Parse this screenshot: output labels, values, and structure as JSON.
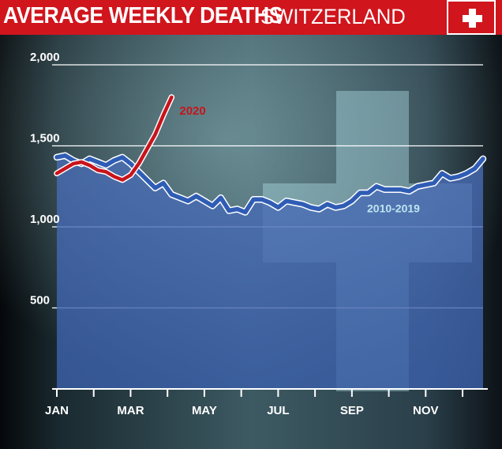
{
  "header": {
    "title": "AVERAGE WEEKLY DEATHS",
    "subtitle": "SWITZERLAND",
    "flag_icon": "swiss-flag-icon"
  },
  "colors": {
    "banner": "#d0151d",
    "series_2020": "#c8141c",
    "series_baseline": "#2f5db5",
    "baseline_fill": "#3a5fa8",
    "background": "#10171c"
  },
  "chart_data": {
    "type": "line",
    "title": "AVERAGE WEEKLY DEATHS",
    "subtitle": "SWITZERLAND",
    "ylim": [
      0,
      2000
    ],
    "yticks": [
      500,
      1000,
      1500,
      2000
    ],
    "ytick_labels": [
      "500",
      "1,000",
      "1,500",
      "2,000"
    ],
    "x_range_weeks": [
      1,
      53
    ],
    "xticks_weeks": [
      1,
      10,
      19,
      28,
      37,
      46
    ],
    "xtick_labels": [
      "JAN",
      "MAR",
      "MAY",
      "JUL",
      "SEP",
      "NOV"
    ],
    "grid": true,
    "series": [
      {
        "name": "2010-2019",
        "x": [
          1,
          2,
          3,
          4,
          5,
          6,
          7,
          8,
          9,
          10,
          11,
          12,
          13,
          14,
          15,
          16,
          17,
          18,
          19,
          20,
          21,
          22,
          23,
          24,
          25,
          26,
          27,
          28,
          29,
          30,
          31,
          32,
          33,
          34,
          35,
          36,
          37,
          38,
          39,
          40,
          41,
          42,
          43,
          44,
          45,
          46,
          47,
          48,
          49,
          50,
          51,
          52,
          53
        ],
        "values": [
          1430,
          1440,
          1410,
          1390,
          1420,
          1400,
          1380,
          1410,
          1430,
          1390,
          1340,
          1290,
          1240,
          1270,
          1200,
          1180,
          1160,
          1190,
          1160,
          1130,
          1180,
          1100,
          1110,
          1090,
          1170,
          1170,
          1150,
          1120,
          1160,
          1150,
          1140,
          1120,
          1110,
          1140,
          1120,
          1130,
          1160,
          1210,
          1210,
          1250,
          1230,
          1230,
          1230,
          1220,
          1250,
          1260,
          1270,
          1330,
          1300,
          1310,
          1330,
          1360,
          1420
        ]
      },
      {
        "name": "2020",
        "x": [
          1,
          2,
          3,
          4,
          5,
          6,
          7,
          8,
          9,
          10,
          11,
          12,
          13,
          14,
          15
        ],
        "values": [
          1330,
          1360,
          1390,
          1400,
          1380,
          1350,
          1340,
          1310,
          1290,
          1320,
          1390,
          1480,
          1570,
          1690,
          1800
        ]
      }
    ]
  }
}
